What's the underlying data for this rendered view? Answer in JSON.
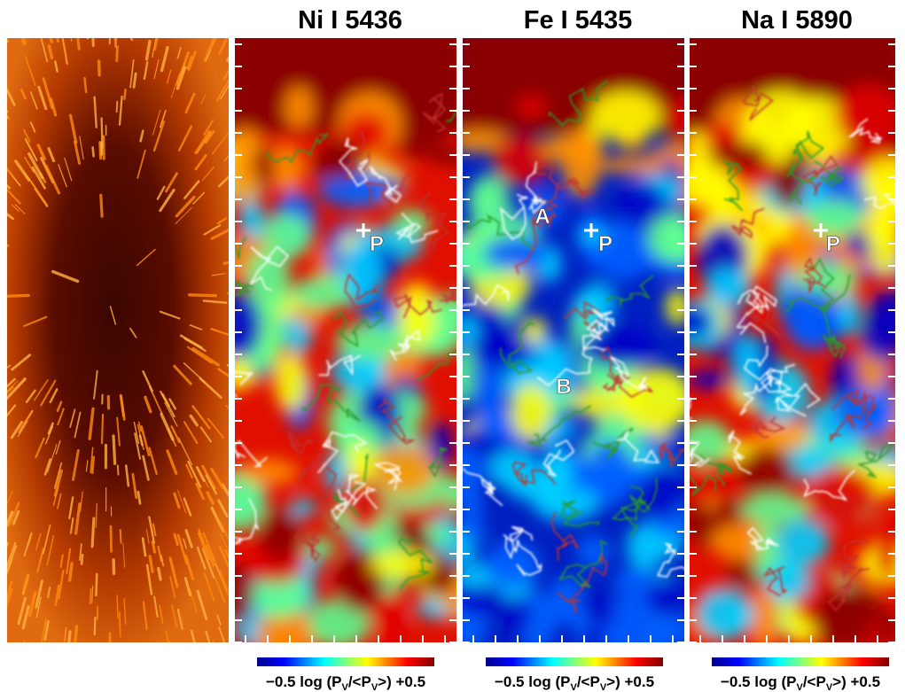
{
  "panels": [
    {
      "title": "Ni I 5436",
      "annotations": [
        "P"
      ],
      "colorbar": {
        "min": "−0.5",
        "parts": [
          "log (P",
          "V",
          "/<P",
          "V",
          ">)"
        ],
        "max": "+0.5"
      }
    },
    {
      "title": "Fe I 5435",
      "annotations": [
        "A",
        "P",
        "B"
      ],
      "colorbar": {
        "min": "−0.5",
        "parts": [
          "log (P",
          "V",
          "/<P",
          "V",
          ">)"
        ],
        "max": "+0.5"
      }
    },
    {
      "title": "Na I 5890",
      "annotations": [
        "P"
      ],
      "colorbar": {
        "min": "−0.5",
        "parts": [
          "log (P",
          "V",
          "/<P",
          "V",
          ">)"
        ],
        "max": "+0.5"
      }
    }
  ]
}
